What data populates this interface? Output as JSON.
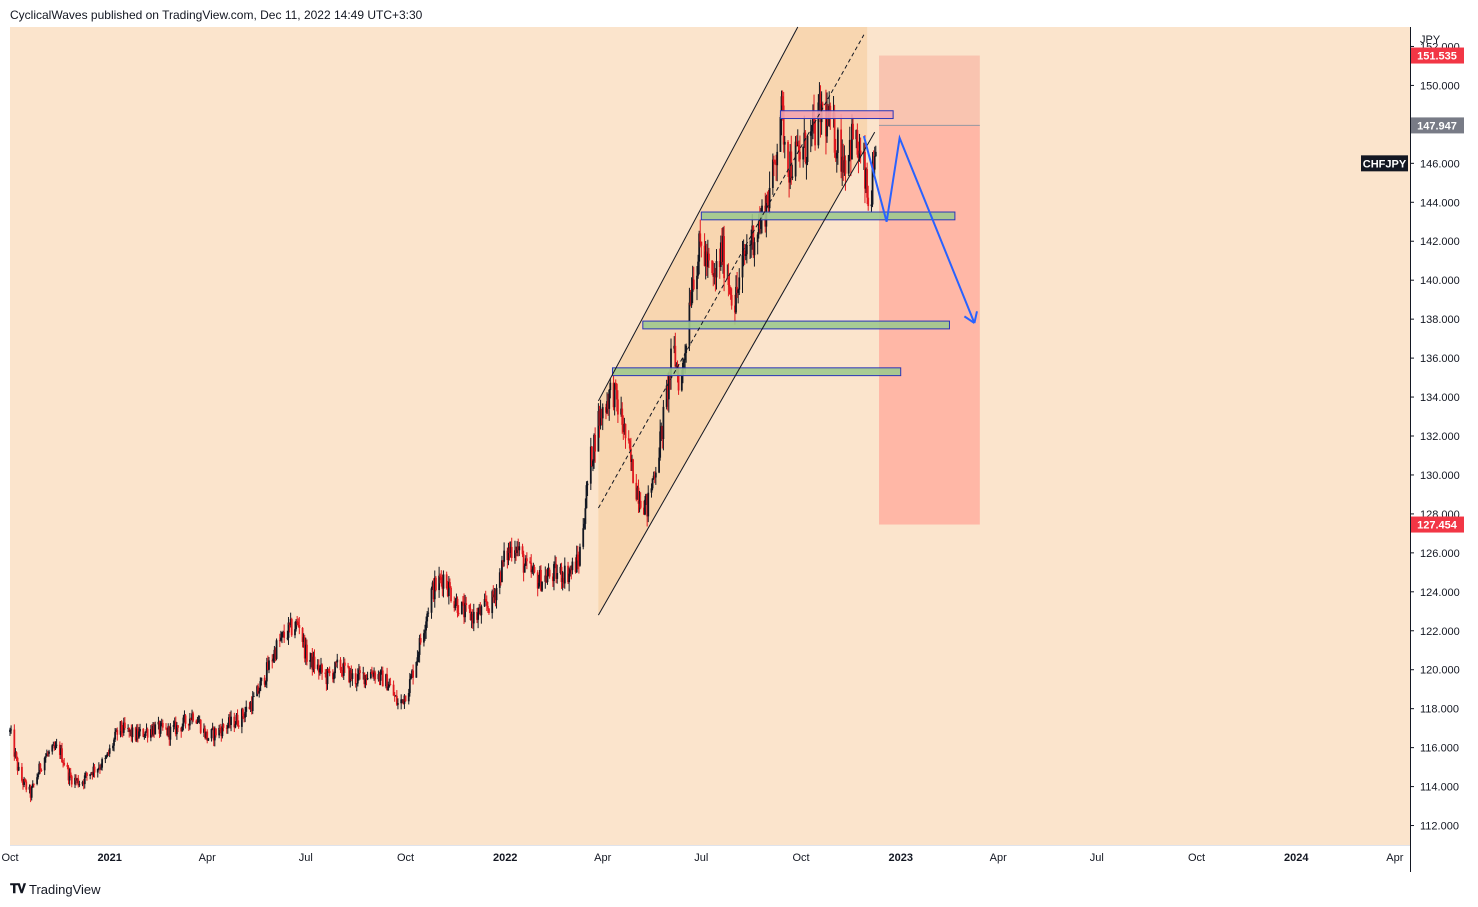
{
  "header": {
    "author": "CyclicalWaves",
    "published_on": "published on TradingView.com, Dec 11, 2022 14:49 UTC+3:30"
  },
  "footer": {
    "brand": "TradingView",
    "logo_glyph": "17"
  },
  "colors": {
    "background": "#fbe4cc",
    "up_candle": "#131722",
    "down_candle": "#e0191f",
    "channel_fill": "#f8d6b0",
    "long_box": "#ffb7a6",
    "long_box_top": "#f9c4b0",
    "zone_green": "#9fc98e",
    "zone_red": "#f4a4b0",
    "zone_border": "#2a34b8",
    "arrow": "#2962ff",
    "label_red": "#f23645",
    "label_gray": "#787b86",
    "label_black": "#131722"
  },
  "chart_data": {
    "type": "candlestick",
    "symbol": "CHFJPY",
    "currency": "JPY",
    "x_range": [
      "2020-10-01",
      "2024-04-15"
    ],
    "ylim": [
      111,
      153
    ],
    "x_ticks": [
      {
        "label": "Oct",
        "date": "2020-10-01"
      },
      {
        "label": "2021",
        "date": "2021-01-01"
      },
      {
        "label": "Apr",
        "date": "2021-04-01"
      },
      {
        "label": "Jul",
        "date": "2021-07-01"
      },
      {
        "label": "Oct",
        "date": "2021-10-01"
      },
      {
        "label": "2022",
        "date": "2022-01-01"
      },
      {
        "label": "Apr",
        "date": "2022-04-01"
      },
      {
        "label": "Jul",
        "date": "2022-07-01"
      },
      {
        "label": "Oct",
        "date": "2022-10-01"
      },
      {
        "label": "2023",
        "date": "2023-01-01"
      },
      {
        "label": "Apr",
        "date": "2023-04-01"
      },
      {
        "label": "Jul",
        "date": "2023-07-01"
      },
      {
        "label": "Oct",
        "date": "2023-10-01"
      },
      {
        "label": "2024",
        "date": "2024-01-01"
      },
      {
        "label": "Apr",
        "date": "2024-04-01"
      }
    ],
    "y_ticks": [
      "112.000",
      "114.000",
      "116.000",
      "118.000",
      "120.000",
      "122.000",
      "124.000",
      "126.000",
      "128.000",
      "130.000",
      "132.000",
      "134.000",
      "136.000",
      "138.000",
      "140.000",
      "142.000",
      "144.000",
      "146.000",
      "148.000",
      "150.000",
      "152.000"
    ],
    "price_labels": [
      {
        "text": "151.535",
        "value": 151.535,
        "style": "red"
      },
      {
        "text": "147.947",
        "value": 147.947,
        "style": "gray"
      },
      {
        "text": "127.454",
        "value": 127.454,
        "style": "red"
      }
    ],
    "symbol_label": {
      "text": "CHFJPY",
      "value": 146.0
    },
    "price_path": [
      [
        "2020-10-01",
        116.8
      ],
      [
        "2020-10-10",
        114.5
      ],
      [
        "2020-10-20",
        113.6
      ],
      [
        "2020-11-01",
        115.5
      ],
      [
        "2020-11-15",
        116.0
      ],
      [
        "2020-11-25",
        114.5
      ],
      [
        "2020-12-05",
        114.2
      ],
      [
        "2020-12-15",
        114.8
      ],
      [
        "2020-12-28",
        115.3
      ],
      [
        "2021-01-10",
        117.0
      ],
      [
        "2021-01-25",
        116.6
      ],
      [
        "2021-02-10",
        117.0
      ],
      [
        "2021-02-25",
        116.8
      ],
      [
        "2021-03-10",
        117.2
      ],
      [
        "2021-03-20",
        117.8
      ],
      [
        "2021-04-01",
        116.5
      ],
      [
        "2021-04-15",
        117.0
      ],
      [
        "2021-05-01",
        117.5
      ],
      [
        "2021-05-15",
        118.5
      ],
      [
        "2021-05-25",
        119.8
      ],
      [
        "2021-06-05",
        121.3
      ],
      [
        "2021-06-15",
        122.0
      ],
      [
        "2021-06-25",
        122.4
      ],
      [
        "2021-07-01",
        120.8
      ],
      [
        "2021-07-08",
        120.3
      ],
      [
        "2021-07-20",
        119.6
      ],
      [
        "2021-08-01",
        120.2
      ],
      [
        "2021-08-15",
        119.5
      ],
      [
        "2021-09-01",
        119.9
      ],
      [
        "2021-09-15",
        119.3
      ],
      [
        "2021-09-25",
        118.1
      ],
      [
        "2021-10-05",
        119.3
      ],
      [
        "2021-10-15",
        121.5
      ],
      [
        "2021-10-25",
        124.0
      ],
      [
        "2021-11-05",
        124.8
      ],
      [
        "2021-11-15",
        123.6
      ],
      [
        "2021-11-25",
        122.9
      ],
      [
        "2021-12-05",
        122.7
      ],
      [
        "2021-12-20",
        123.5
      ],
      [
        "2022-01-01",
        125.8
      ],
      [
        "2022-01-10",
        126.5
      ],
      [
        "2022-01-20",
        125.2
      ],
      [
        "2022-02-01",
        124.6
      ],
      [
        "2022-02-15",
        124.9
      ],
      [
        "2022-03-01",
        125.0
      ],
      [
        "2022-03-10",
        125.6
      ],
      [
        "2022-03-20",
        130.5
      ],
      [
        "2022-03-28",
        132.8
      ],
      [
        "2022-04-10",
        134.5
      ],
      [
        "2022-04-20",
        132.5
      ],
      [
        "2022-05-01",
        129.5
      ],
      [
        "2022-05-12",
        128.3
      ],
      [
        "2022-05-25",
        132.0
      ],
      [
        "2022-06-05",
        136.5
      ],
      [
        "2022-06-12",
        134.4
      ],
      [
        "2022-06-22",
        140.0
      ],
      [
        "2022-07-01",
        141.8
      ],
      [
        "2022-07-12",
        139.8
      ],
      [
        "2022-07-20",
        141.5
      ],
      [
        "2022-08-01",
        138.8
      ],
      [
        "2022-08-12",
        141.7
      ],
      [
        "2022-08-25",
        143.0
      ],
      [
        "2022-09-05",
        145.2
      ],
      [
        "2022-09-12",
        148.8
      ],
      [
        "2022-09-20",
        146.0
      ],
      [
        "2022-10-01",
        146.5
      ],
      [
        "2022-10-10",
        147.2
      ],
      [
        "2022-10-20",
        148.7
      ],
      [
        "2022-11-01",
        147.4
      ],
      [
        "2022-11-10",
        146.2
      ],
      [
        "2022-11-18",
        147.4
      ],
      [
        "2022-11-28",
        145.6
      ],
      [
        "2022-12-02",
        143.8
      ],
      [
        "2022-12-06",
        145.0
      ],
      [
        "2022-12-09",
        145.6
      ]
    ],
    "channel": {
      "lower": [
        [
          "2022-03-28",
          122.8
        ],
        [
          "2022-12-08",
          147.6
        ]
      ],
      "upper": [
        [
          "2022-03-28",
          133.8
        ],
        [
          "2022-09-28",
          153.0
        ]
      ],
      "mid": [
        [
          "2022-03-28",
          128.3
        ],
        [
          "2022-11-28",
          152.6
        ]
      ],
      "fill_end": "2022-12-01"
    },
    "zones": [
      {
        "from": "2022-09-12",
        "to": "2022-12-25",
        "low": 148.3,
        "high": 148.7,
        "color": "red"
      },
      {
        "from": "2022-07-01",
        "to": "2023-02-20",
        "low": 143.1,
        "high": 143.5,
        "color": "green"
      },
      {
        "from": "2022-05-08",
        "to": "2023-02-15",
        "low": 137.5,
        "high": 137.9,
        "color": "green"
      },
      {
        "from": "2022-04-10",
        "to": "2023-01-01",
        "low": 135.1,
        "high": 135.5,
        "color": "green"
      }
    ],
    "position_box": {
      "from": "2022-12-12",
      "to": "2023-03-15",
      "entry": 147.947,
      "stop": 151.535,
      "target": 127.454
    },
    "projection": [
      [
        "2022-11-28",
        147.4
      ],
      [
        "2022-12-19",
        143.0
      ],
      [
        "2022-12-31",
        147.3
      ],
      [
        "2023-03-10",
        137.8
      ]
    ]
  }
}
